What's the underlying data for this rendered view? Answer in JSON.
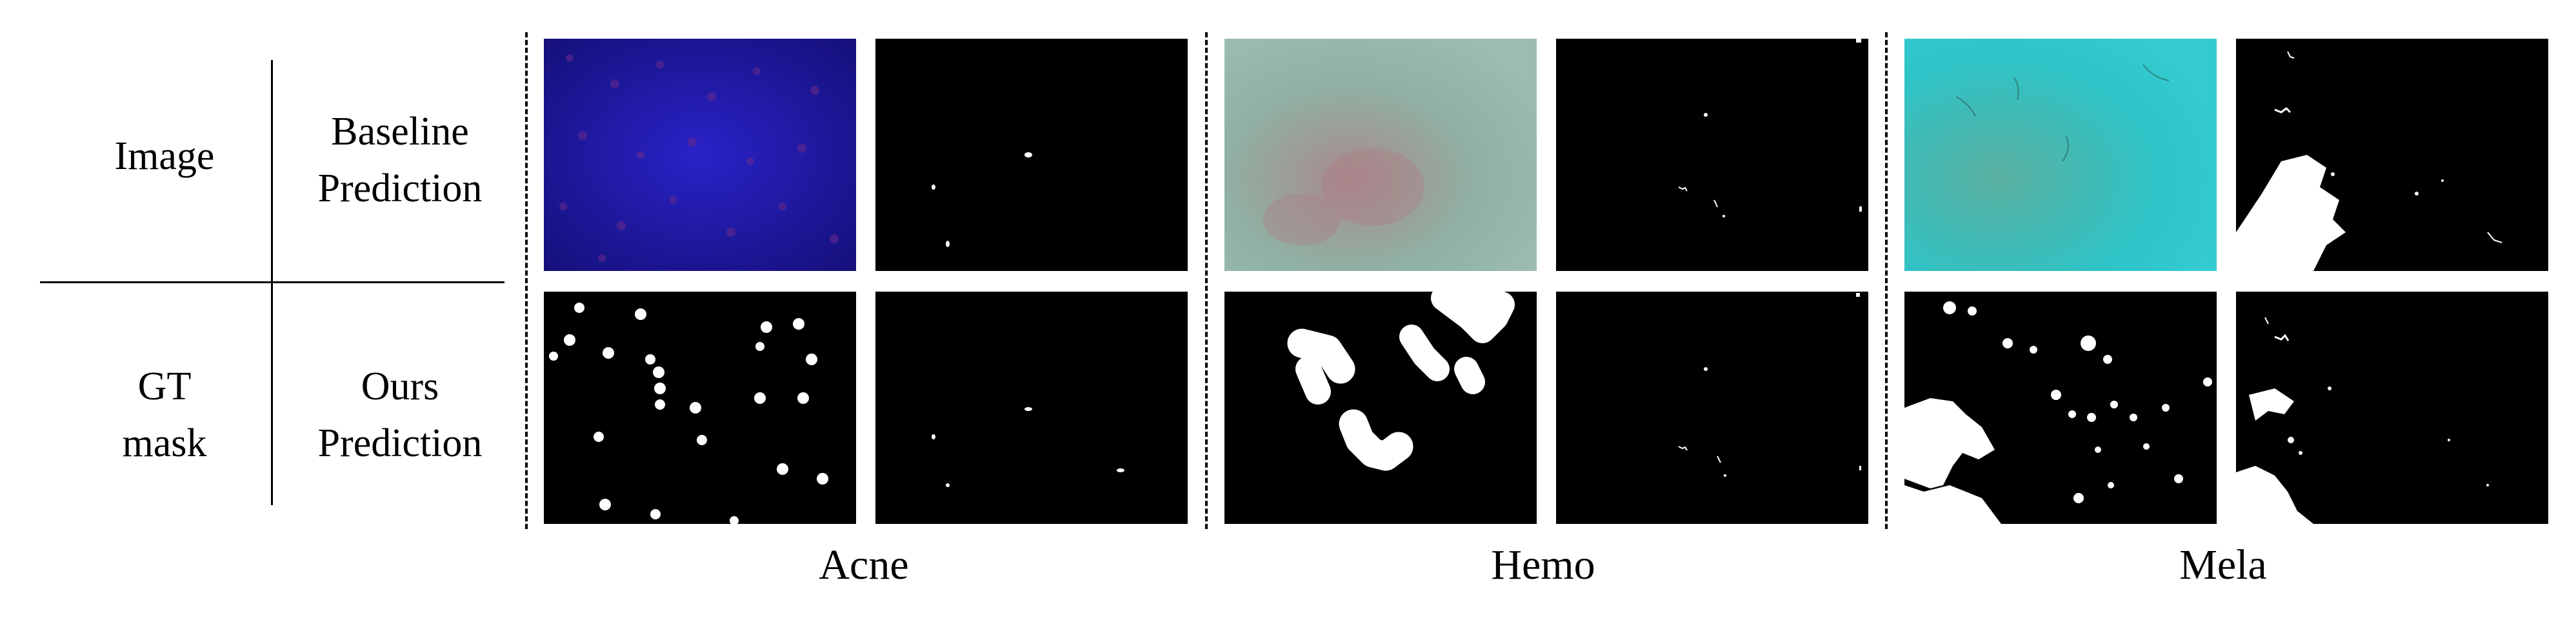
{
  "legend": {
    "top_left": "Image",
    "top_right": "Baseline\nPrediction",
    "bottom_left": "GT\nmask",
    "bottom_right": "Ours\nPrediction"
  },
  "groups": [
    {
      "label": "Acne"
    },
    {
      "label": "Hemo"
    },
    {
      "label": "Mela"
    }
  ],
  "colors": {
    "acne_image": "#1f1aa8",
    "hemo_image": "#8fb0a2",
    "mela_image": "#2fc2c6",
    "mask_fg": "#ffffff",
    "mask_bg": "#000000"
  }
}
